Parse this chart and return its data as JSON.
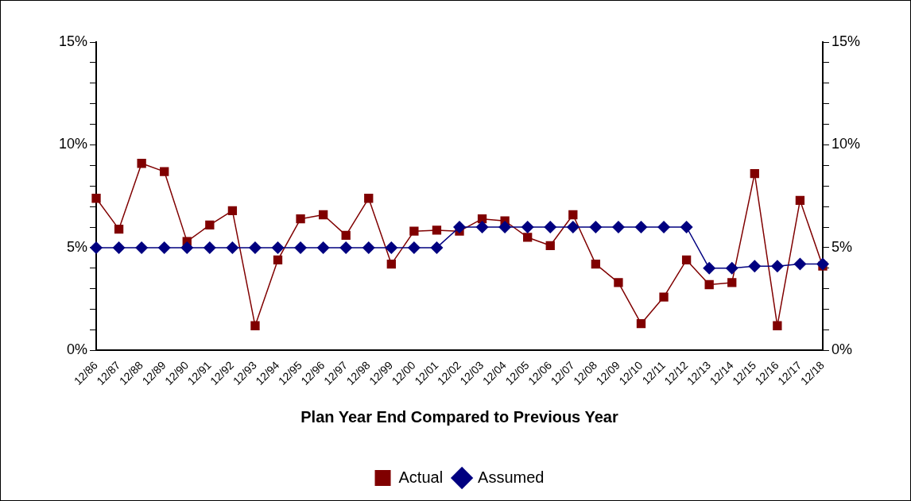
{
  "chart_data": {
    "type": "line",
    "xlabel": "Plan Year End Compared to Previous Year",
    "categories": [
      "12/86",
      "12/87",
      "12/88",
      "12/89",
      "12/90",
      "12/91",
      "12/92",
      "12/93",
      "12/94",
      "12/95",
      "12/96",
      "12/97",
      "12/98",
      "12/99",
      "12/00",
      "12/01",
      "12/02",
      "12/03",
      "12/04",
      "12/05",
      "12/06",
      "12/07",
      "12/08",
      "12/09",
      "12/10",
      "12/11",
      "12/12",
      "12/13",
      "12/14",
      "12/15",
      "12/16",
      "12/17",
      "12/18"
    ],
    "series": [
      {
        "name": "Actual",
        "color": "#800000",
        "marker": "square",
        "values": [
          7.4,
          5.9,
          9.1,
          8.7,
          5.3,
          6.1,
          6.8,
          1.2,
          4.4,
          6.4,
          6.6,
          5.6,
          7.4,
          4.2,
          5.8,
          5.85,
          5.8,
          6.4,
          6.3,
          5.5,
          5.1,
          6.6,
          4.2,
          3.3,
          1.3,
          2.6,
          4.4,
          3.2,
          3.3,
          8.6,
          1.2,
          7.3,
          4.1
        ]
      },
      {
        "name": "Assumed",
        "color": "#000080",
        "marker": "diamond",
        "values": [
          5,
          5,
          5,
          5,
          5,
          5,
          5,
          5,
          5,
          5,
          5,
          5,
          5,
          5,
          5,
          5,
          6,
          6,
          6,
          6,
          6,
          6,
          6,
          6,
          6,
          6,
          6,
          4,
          4,
          4.1,
          4.1,
          4.2,
          4.2
        ]
      }
    ],
    "ylim": [
      0,
      15
    ],
    "yticks": [
      {
        "value": 0,
        "label": "0%"
      },
      {
        "value": 1,
        "label": null
      },
      {
        "value": 2,
        "label": null
      },
      {
        "value": 3,
        "label": null
      },
      {
        "value": 4,
        "label": null
      },
      {
        "value": 5,
        "label": "5%"
      },
      {
        "value": 6,
        "label": null
      },
      {
        "value": 7,
        "label": null
      },
      {
        "value": 8,
        "label": null
      },
      {
        "value": 9,
        "label": null
      },
      {
        "value": 10,
        "label": "10%"
      },
      {
        "value": 11,
        "label": null
      },
      {
        "value": 12,
        "label": null
      },
      {
        "value": 13,
        "label": null
      },
      {
        "value": 14,
        "label": null
      },
      {
        "value": 15,
        "label": "15%"
      }
    ],
    "y2lim": [
      0,
      15
    ],
    "y2ticks": [
      {
        "value": 0,
        "label": "0%"
      },
      {
        "value": 1,
        "label": null
      },
      {
        "value": 2,
        "label": null
      },
      {
        "value": 3,
        "label": null
      },
      {
        "value": 4,
        "label": null
      },
      {
        "value": 5,
        "label": "5%"
      },
      {
        "value": 6,
        "label": null
      },
      {
        "value": 7,
        "label": null
      },
      {
        "value": 8,
        "label": null
      },
      {
        "value": 9,
        "label": null
      },
      {
        "value": 10,
        "label": "10%"
      },
      {
        "value": 11,
        "label": null
      },
      {
        "value": 12,
        "label": null
      },
      {
        "value": 13,
        "label": null
      },
      {
        "value": 14,
        "label": null
      },
      {
        "value": 15,
        "label": "15%"
      }
    ],
    "grid": false,
    "legend": "bottom",
    "line_style": "solid"
  }
}
